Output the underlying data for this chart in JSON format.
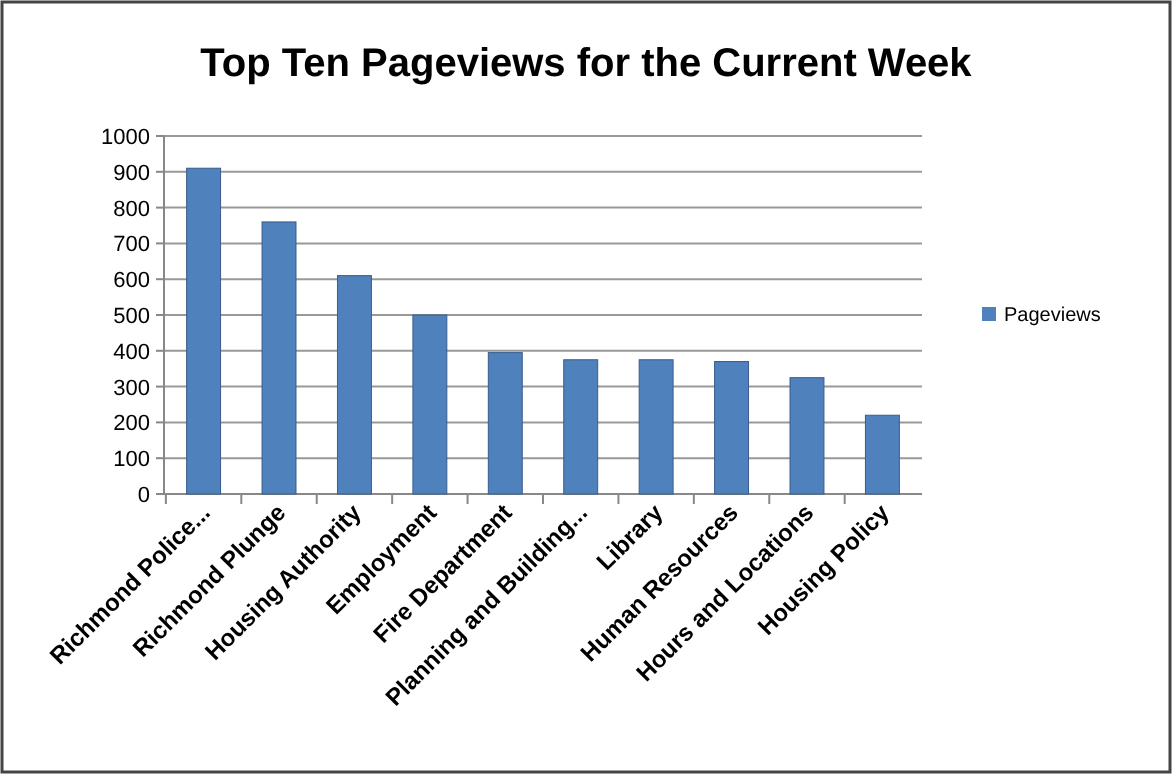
{
  "chart_data": {
    "type": "bar",
    "title": "Top Ten Pageviews for the Current Week",
    "categories": [
      "Richmond Police...",
      "Richmond Plunge",
      "Housing Authority",
      "Employment",
      "Fire Department",
      "Planning and Building...",
      "Library",
      "Human Resources",
      "Hours and Locations",
      "Housing Policy"
    ],
    "series": [
      {
        "name": "Pageviews",
        "color": "#4f81bd",
        "values": [
          910,
          760,
          610,
          500,
          395,
          375,
          375,
          370,
          325,
          220
        ]
      }
    ],
    "ylim": [
      0,
      1000
    ],
    "yticks": [
      0,
      100,
      200,
      300,
      400,
      500,
      600,
      700,
      800,
      900,
      1000
    ],
    "grid": "y",
    "legend": "right"
  }
}
